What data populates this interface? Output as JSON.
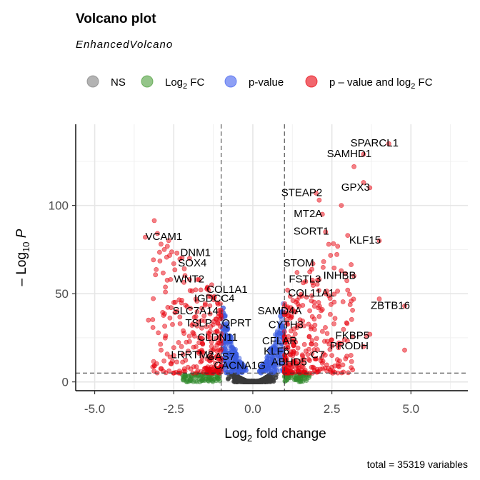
{
  "chart_data": {
    "type": "scatter",
    "title": "Volcano plot",
    "subtitle": "EnhancedVolcano",
    "caption": "total = 35319 variables",
    "xlabel": {
      "base": "Log",
      "sub": "2",
      "rest": " fold change"
    },
    "ylabel": {
      "pre": "– Log",
      "sub": "10",
      "italic": "P"
    },
    "xlim": [
      -5.6,
      6.8
    ],
    "ylim": [
      -5,
      146
    ],
    "x_ticks": [
      -5.0,
      -2.5,
      0.0,
      2.5,
      5.0
    ],
    "x_tick_labels": [
      "-5.0",
      "-2.5",
      "0.0",
      "2.5",
      "5.0"
    ],
    "y_ticks": [
      0,
      50,
      100
    ],
    "y_tick_labels": [
      "0",
      "50",
      "100"
    ],
    "grid": true,
    "fc_cutoff": 1.0,
    "p_cutoff_neglog10": 5,
    "legend_position": "top",
    "legend": [
      {
        "key": "ns",
        "label": "NS",
        "color": "#808080"
      },
      {
        "key": "fc",
        "label_parts": [
          "Log",
          "2",
          " FC"
        ],
        "color": "#4d9e3a"
      },
      {
        "key": "p",
        "label": "p-value",
        "color": "#4361ee"
      },
      {
        "key": "both",
        "label_parts": [
          "p – value and log",
          "2",
          " FC"
        ],
        "color": "#e8000b"
      }
    ],
    "colors": {
      "ns": "#3a3a3a",
      "fc": "#2f8a2b",
      "p": "#3a5be0",
      "both": "#e8000b"
    },
    "labeled_genes": [
      {
        "gene": "SPARCL1",
        "x": 4.3,
        "y": 135
      },
      {
        "gene": "SAMHD1",
        "x": 3.5,
        "y": 129
      },
      {
        "gene": "GPX3",
        "x": 3.7,
        "y": 110
      },
      {
        "gene": "STEAP2",
        "x": 2.0,
        "y": 107
      },
      {
        "gene": "MT2A",
        "x": 2.2,
        "y": 95
      },
      {
        "gene": "SORT1",
        "x": 2.3,
        "y": 85
      },
      {
        "gene": "KLF15",
        "x": 4.0,
        "y": 80
      },
      {
        "gene": "VCAM1",
        "x": -3.4,
        "y": 82
      },
      {
        "gene": "DNM1",
        "x": -2.4,
        "y": 73
      },
      {
        "gene": "SOX4",
        "x": -2.5,
        "y": 67
      },
      {
        "gene": "STOM",
        "x": 1.9,
        "y": 67
      },
      {
        "gene": "INHBB",
        "x": 3.2,
        "y": 60
      },
      {
        "gene": "FSTL3",
        "x": 2.1,
        "y": 58
      },
      {
        "gene": "WNT2",
        "x": -2.6,
        "y": 58
      },
      {
        "gene": "COL1A1",
        "x": -1.4,
        "y": 52
      },
      {
        "gene": "COL11A1",
        "x": 2.3,
        "y": 50
      },
      {
        "gene": "IGDCC4",
        "x": -1.8,
        "y": 47
      },
      {
        "gene": "ZBTB16",
        "x": 4.8,
        "y": 43
      },
      {
        "gene": "SLC7A14",
        "x": -2.4,
        "y": 40
      },
      {
        "gene": "SAMD4A",
        "x": 1.3,
        "y": 40
      },
      {
        "gene": "TSLP",
        "x": -2.3,
        "y": 33
      },
      {
        "gene": "QPRT",
        "x": -1.1,
        "y": 33
      },
      {
        "gene": "CYTH3",
        "x": 1.5,
        "y": 32
      },
      {
        "gene": "FKBP5",
        "x": 3.6,
        "y": 26
      },
      {
        "gene": "CLDN11",
        "x": -1.7,
        "y": 25
      },
      {
        "gene": "CFLAR",
        "x": 1.3,
        "y": 23
      },
      {
        "gene": "PRODH",
        "x": 3.5,
        "y": 20
      },
      {
        "gene": "KLF6",
        "x": 1.2,
        "y": 17
      },
      {
        "gene": "C7",
        "x": 2.5,
        "y": 15
      },
      {
        "gene": "LRRTM2",
        "x": -2.5,
        "y": 15
      },
      {
        "gene": "GAS7",
        "x": -1.6,
        "y": 14
      },
      {
        "gene": "ABHD5",
        "x": 1.6,
        "y": 11
      },
      {
        "gene": "CACNA1G",
        "x": -1.0,
        "y": 9
      }
    ]
  }
}
